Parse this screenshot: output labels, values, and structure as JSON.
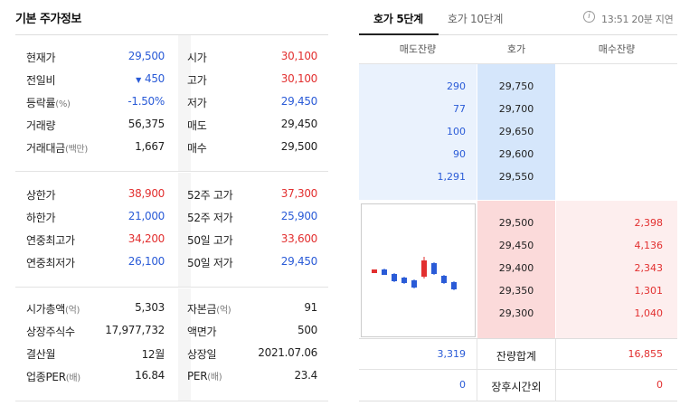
{
  "left_panel": {
    "title": "기본 주가정보",
    "section1": [
      {
        "lk": "현재가",
        "lunit": "",
        "lv": "29,500",
        "lv_color": "blue",
        "rk": "시가",
        "runit": "",
        "rv": "30,100",
        "rv_color": "red"
      },
      {
        "lk": "전일비",
        "lunit": "",
        "lv": "450",
        "lv_prefix": "▼",
        "lv_color": "blue",
        "rk": "고가",
        "runit": "",
        "rv": "30,100",
        "rv_color": "red"
      },
      {
        "lk": "등락률",
        "lunit": "(%)",
        "lv": "-1.50%",
        "lv_color": "blue",
        "rk": "저가",
        "runit": "",
        "rv": "29,450",
        "rv_color": "blue"
      },
      {
        "lk": "거래량",
        "lunit": "",
        "lv": "56,375",
        "lv_color": "dark",
        "rk": "매도",
        "runit": "",
        "rv": "29,450",
        "rv_color": "dark"
      },
      {
        "lk": "거래대금",
        "lunit": "(백만)",
        "lv": "1,667",
        "lv_color": "dark",
        "rk": "매수",
        "runit": "",
        "rv": "29,500",
        "rv_color": "dark"
      }
    ],
    "section2": [
      {
        "lk": "상한가",
        "lunit": "",
        "lv": "38,900",
        "lv_color": "red",
        "rk": "52주 고가",
        "runit": "",
        "rv": "37,300",
        "rv_color": "red"
      },
      {
        "lk": "하한가",
        "lunit": "",
        "lv": "21,000",
        "lv_color": "blue",
        "rk": "52주 저가",
        "runit": "",
        "rv": "25,900",
        "rv_color": "blue"
      },
      {
        "lk": "연중최고가",
        "lunit": "",
        "lv": "34,200",
        "lv_color": "red",
        "rk": "50일 고가",
        "runit": "",
        "rv": "33,600",
        "rv_color": "red"
      },
      {
        "lk": "연중최저가",
        "lunit": "",
        "lv": "26,100",
        "lv_color": "blue",
        "rk": "50일 저가",
        "runit": "",
        "rv": "29,450",
        "rv_color": "blue"
      }
    ],
    "section3": [
      {
        "lk": "시가총액",
        "lunit": "(억)",
        "lv": "5,303",
        "lv_color": "dark",
        "rk": "자본금",
        "runit": "(억)",
        "rv": "91",
        "rv_color": "dark"
      },
      {
        "lk": "상장주식수",
        "lunit": "",
        "lv": "17,977,732",
        "lv_color": "dark",
        "rk": "액면가",
        "runit": "",
        "rv": "500",
        "rv_color": "dark"
      },
      {
        "lk": "결산월",
        "lunit": "",
        "lv": "12월",
        "lv_color": "dark",
        "rk": "상장일",
        "runit": "",
        "rv": "2021.07.06",
        "rv_color": "dark"
      },
      {
        "lk": "업종PER",
        "lunit": "(배)",
        "lv": "16.84",
        "lv_color": "dark",
        "rk": "PER",
        "runit": "(배)",
        "rv": "23.4",
        "rv_color": "dark"
      }
    ]
  },
  "right_panel": {
    "tabs": [
      "호가 5단계",
      "호가 10단계"
    ],
    "active_tab": 0,
    "info_icon": "info-icon",
    "time_info": "13:51 20분 지연",
    "headers": {
      "ask_qty": "매도잔량",
      "price": "호가",
      "bid_qty": "매수잔량"
    },
    "asks": [
      {
        "qty": "290",
        "price": "29,750"
      },
      {
        "qty": "77",
        "price": "29,700"
      },
      {
        "qty": "100",
        "price": "29,650"
      },
      {
        "qty": "90",
        "price": "29,600"
      },
      {
        "qty": "1,291",
        "price": "29,550"
      }
    ],
    "bids": [
      {
        "price": "29,500",
        "qty": "2,398"
      },
      {
        "price": "29,450",
        "qty": "4,136"
      },
      {
        "price": "29,400",
        "qty": "2,343"
      },
      {
        "price": "29,350",
        "qty": "1,301"
      },
      {
        "price": "29,300",
        "qty": "1,040"
      }
    ],
    "summary": [
      {
        "ask": "3,319",
        "label": "잔량합계",
        "bid": "16,855"
      },
      {
        "ask": "0",
        "label": "장후시간외",
        "bid": "0"
      }
    ],
    "mini_chart": {
      "candles": [
        {
          "dir": "up"
        },
        {
          "dir": "down"
        },
        {
          "dir": "down"
        },
        {
          "dir": "down"
        },
        {
          "dir": "down"
        },
        {
          "dir": "up"
        },
        {
          "dir": "down"
        },
        {
          "dir": "down"
        },
        {
          "dir": "down"
        }
      ]
    }
  },
  "colors": {
    "up": "#e22f2f",
    "down": "#2a5bd7",
    "ask_bg": "#eaf2fd",
    "bid_bg": "#fdeeee"
  }
}
